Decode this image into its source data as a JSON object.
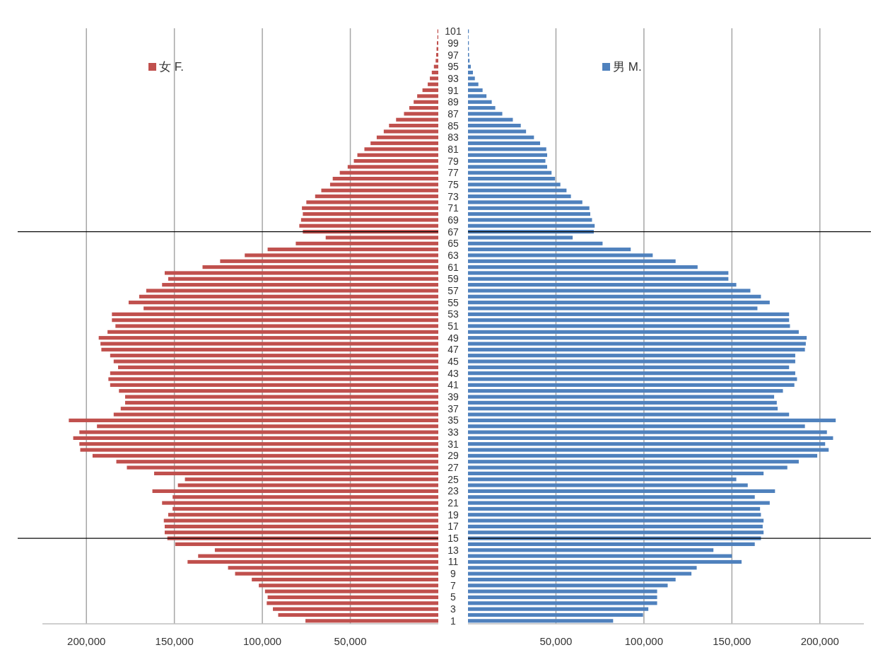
{
  "chart_data": [
    {
      "type": "bar",
      "orientation": "horizontal",
      "tick_labels": "x",
      "grid": "x",
      "legend": "top",
      "categories": [
        "101",
        null,
        "99",
        null,
        "97",
        null,
        "95",
        null,
        "93",
        null,
        "91",
        null,
        "89",
        null,
        "87",
        null,
        "85",
        null,
        "83",
        null,
        "81",
        null,
        "79",
        null,
        "77",
        null,
        "75",
        null,
        "73",
        null,
        "71",
        null,
        "69",
        null,
        "67",
        null,
        "65",
        null,
        "63",
        null,
        "61",
        null,
        "59",
        null,
        "57",
        null,
        "55",
        null,
        "53",
        null,
        "51",
        null,
        "49",
        null,
        "47",
        null,
        "45",
        null,
        "43",
        null,
        "41",
        null,
        "39",
        null,
        "37",
        null,
        "35",
        null,
        "33",
        null,
        "31",
        null,
        "29",
        null,
        "27",
        null,
        "25",
        null,
        "23",
        null,
        "21",
        null,
        "19",
        null,
        "17",
        null,
        "15",
        null,
        "13",
        null,
        "11",
        null,
        "9",
        null,
        "7",
        null,
        "5",
        null,
        "3",
        null,
        "1"
      ],
      "series": [
        {
          "name": "女 F.",
          "color": "#c0504d",
          "values": [
            500,
            500,
            800,
            1000,
            1200,
            1500,
            2500,
            3700,
            4800,
            6000,
            9000,
            12000,
            14000,
            16500,
            19500,
            24000,
            28000,
            31000,
            35000,
            38500,
            42000,
            46000,
            48000,
            51500,
            56000,
            60000,
            61500,
            66500,
            70000,
            75000,
            77500,
            77000,
            78000,
            79000,
            77000,
            64000,
            81000,
            97000,
            110000,
            124000,
            134000,
            155500,
            153500,
            157000,
            166000,
            170000,
            176000,
            167500,
            185500,
            185500,
            183500,
            188000,
            193000,
            192000,
            191500,
            186500,
            184500,
            182000,
            186500,
            187500,
            186500,
            181500,
            178000,
            178000,
            180500,
            184500,
            210000,
            194000,
            204000,
            207500,
            204000,
            203500,
            196500,
            183000,
            177000,
            161500,
            144000,
            148000,
            162500,
            151000,
            157000,
            151000,
            153500,
            156000,
            155500,
            155500,
            154000,
            149500,
            127000,
            136500,
            142500,
            119500,
            115500,
            106000,
            102000,
            98500,
            97000,
            97500,
            94000,
            91000,
            75500
          ]
        }
      ],
      "xlim": [
        225000,
        0
      ],
      "xticks": [
        {
          "value": 200000,
          "label": "200,000"
        },
        {
          "value": 150000,
          "label": "150,000"
        },
        {
          "value": 100000,
          "label": "100,000"
        },
        {
          "value": 50000,
          "label": "50,000"
        }
      ],
      "ref_lines": [
        {
          "axis": "y",
          "value": "67",
          "color": "#000000"
        },
        {
          "axis": "y",
          "value": "15",
          "color": "#000000"
        }
      ]
    },
    {
      "type": "bar",
      "orientation": "horizontal",
      "grid": "x",
      "legend": "top",
      "categories": [
        "101",
        null,
        "99",
        null,
        "97",
        null,
        "95",
        null,
        "93",
        null,
        "91",
        null,
        "89",
        null,
        "87",
        null,
        "85",
        null,
        "83",
        null,
        "81",
        null,
        "79",
        null,
        "77",
        null,
        "75",
        null,
        "73",
        null,
        "71",
        null,
        "69",
        null,
        "67",
        null,
        "65",
        null,
        "63",
        null,
        "61",
        null,
        "59",
        null,
        "57",
        null,
        "55",
        null,
        "53",
        null,
        "51",
        null,
        "49",
        null,
        "47",
        null,
        "45",
        null,
        "43",
        null,
        "41",
        null,
        "39",
        null,
        "37",
        null,
        "35",
        null,
        "33",
        null,
        "31",
        null,
        "29",
        null,
        "27",
        null,
        "25",
        null,
        "23",
        null,
        "21",
        null,
        "19",
        null,
        "17",
        null,
        "15",
        null,
        "13",
        null,
        "11",
        null,
        "9",
        null,
        "7",
        null,
        "5",
        null,
        "3",
        null,
        "1"
      ],
      "series": [
        {
          "name": "男 M.",
          "color": "#4f81bd",
          "values": [
            500,
            300,
            500,
            500,
            600,
            900,
            1600,
            2800,
            3900,
            5900,
            8300,
            10500,
            13500,
            15500,
            19500,
            25500,
            30000,
            33000,
            37500,
            41000,
            44500,
            45000,
            44000,
            45000,
            47500,
            49500,
            52500,
            56000,
            58500,
            65000,
            69000,
            69500,
            70500,
            72000,
            71500,
            59500,
            76500,
            92500,
            105000,
            118000,
            130500,
            148000,
            148000,
            152500,
            160500,
            166500,
            171500,
            164500,
            182500,
            182500,
            183000,
            188000,
            192500,
            192000,
            191500,
            186000,
            186000,
            182500,
            186000,
            187000,
            185500,
            179000,
            174000,
            175500,
            176000,
            182500,
            209000,
            191500,
            204000,
            207500,
            203000,
            205000,
            198500,
            188000,
            181500,
            168000,
            152500,
            159000,
            174500,
            163000,
            171500,
            166000,
            166500,
            168000,
            167500,
            168000,
            166500,
            163000,
            139500,
            150000,
            155500,
            130000,
            127000,
            118000,
            113500,
            107500,
            107500,
            107500,
            102500,
            99500,
            82500
          ]
        }
      ],
      "xlim": [
        0,
        225000
      ],
      "xticks": [
        {
          "value": 50000,
          "label": "50,000"
        },
        {
          "value": 100000,
          "label": "100,000"
        },
        {
          "value": 150000,
          "label": "150,000"
        },
        {
          "value": 200000,
          "label": "200,000"
        }
      ],
      "ref_lines": [
        {
          "axis": "y",
          "value": "67",
          "color": "#000000"
        },
        {
          "axis": "y",
          "value": "15",
          "color": "#000000"
        }
      ]
    }
  ]
}
